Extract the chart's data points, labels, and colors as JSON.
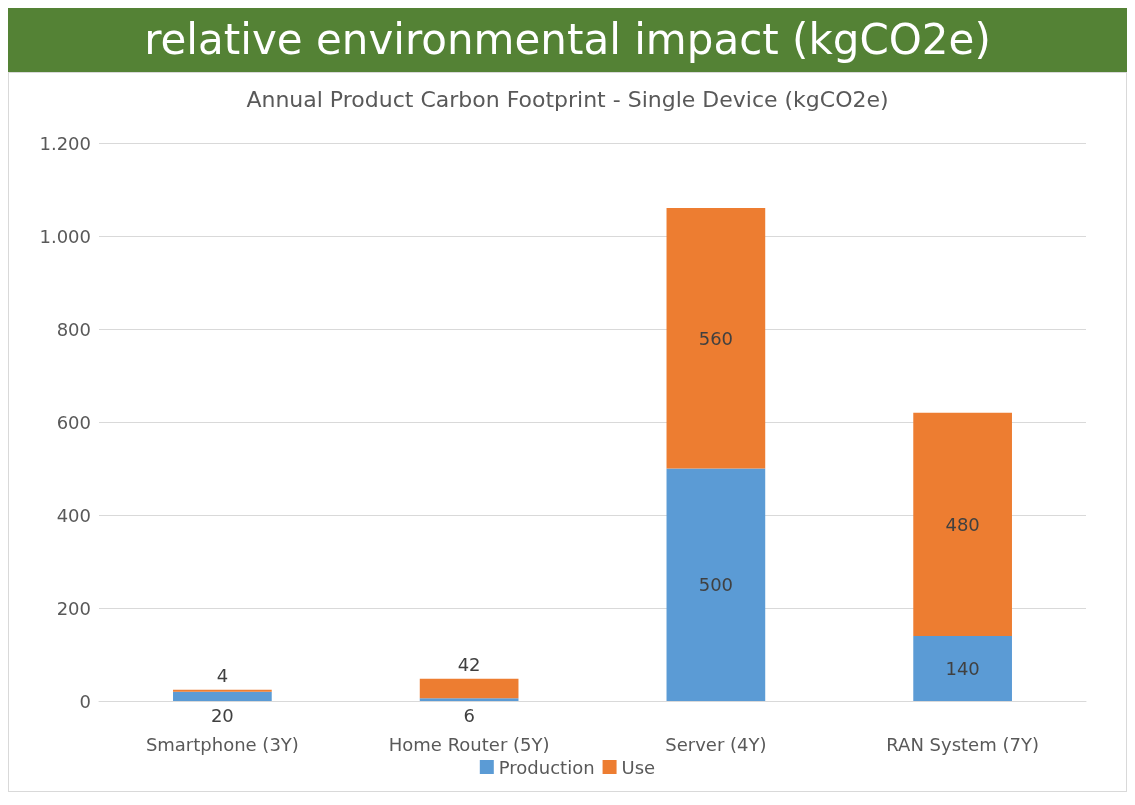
{
  "chart_data": {
    "type": "bar",
    "title": "relative environmental impact (kgCO2e)",
    "subtitle": "Annual Product Carbon Footprint - Single Device (kgCO2e)",
    "categories": [
      "Smartphone (3Y)",
      "Home Router (5Y)",
      "Server (4Y)",
      "RAN System (7Y)"
    ],
    "series": [
      {
        "name": "Production",
        "color": "#5b9bd5",
        "values": [
          20,
          6,
          500,
          140
        ]
      },
      {
        "name": "Use",
        "color": "#ed7d31",
        "values": [
          4,
          42,
          560,
          480
        ]
      }
    ],
    "stacked": true,
    "data_labels": true,
    "ylim": [
      0,
      1200
    ],
    "yticks": [
      0,
      200,
      400,
      600,
      800,
      {
        "value": 1000,
        "label": "1.000"
      },
      {
        "value": 1200,
        "label": "1.200"
      }
    ],
    "grid": "y",
    "legend": "bottom"
  }
}
